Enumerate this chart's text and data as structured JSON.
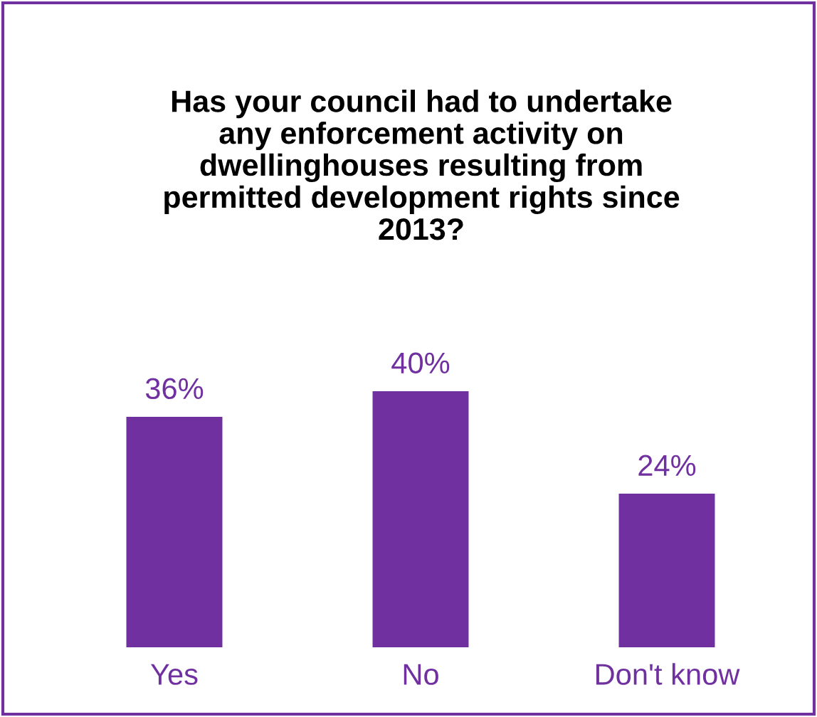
{
  "chart_data": {
    "type": "bar",
    "title": "Has your council had to undertake any enforcement activity on dwellinghouses resulting from permitted development rights since 2013?",
    "categories": [
      "Yes",
      "No",
      "Don't know"
    ],
    "values": [
      36,
      40,
      24
    ],
    "value_labels": [
      "36%",
      "40%",
      "24%"
    ],
    "color": "#7030a0"
  }
}
